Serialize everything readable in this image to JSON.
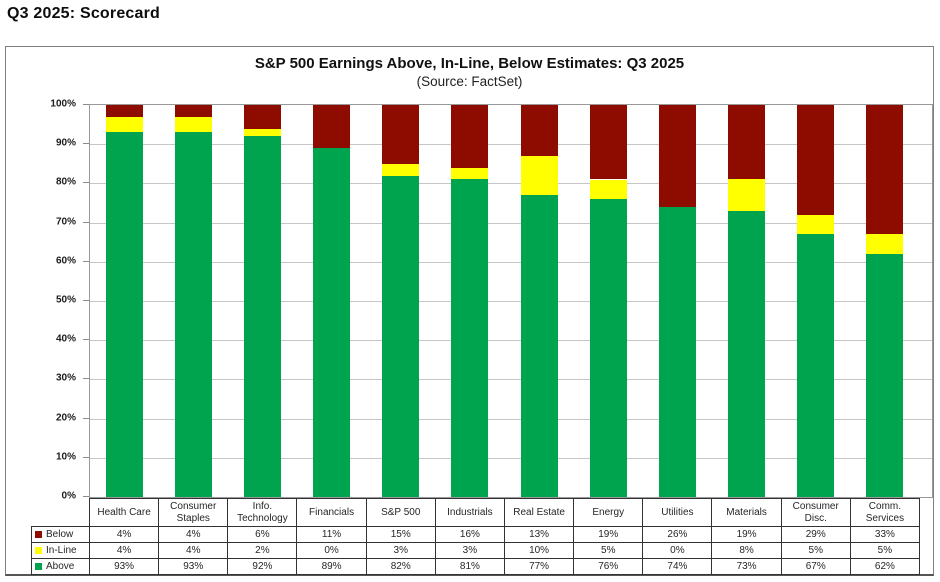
{
  "page": {
    "heading": "Q3 2025: Scorecard"
  },
  "chart": {
    "title": "S&P 500 Earnings Above, In-Line, Below Estimates: Q3 2025",
    "subtitle": "(Source: FactSet)",
    "y_axis_labels": [
      "100%",
      "90%",
      "80%",
      "70%",
      "60%",
      "50%",
      "40%",
      "30%",
      "20%",
      "10%",
      "0%"
    ]
  },
  "chart_data": {
    "type": "bar",
    "stacked": true,
    "title": "S&P 500 Earnings Above, In-Line, Below Estimates: Q3 2025",
    "subtitle": "(Source: FactSet)",
    "categories": [
      "Health Care",
      "Consumer Staples",
      "Info. Technology",
      "Financials",
      "S&P 500",
      "Industrials",
      "Real Estate",
      "Energy",
      "Utilities",
      "Materials",
      "Consumer Disc.",
      "Comm. Services"
    ],
    "series": [
      {
        "name": "Below",
        "color": "#8E0B00",
        "values": [
          4,
          4,
          6,
          11,
          15,
          16,
          13,
          19,
          26,
          19,
          29,
          33
        ]
      },
      {
        "name": "In-Line",
        "color": "#FFFF00",
        "values": [
          4,
          4,
          2,
          0,
          3,
          3,
          10,
          5,
          0,
          8,
          5,
          5
        ]
      },
      {
        "name": "Above",
        "color": "#00A44F",
        "values": [
          93,
          93,
          92,
          89,
          82,
          81,
          77,
          76,
          74,
          73,
          67,
          62
        ]
      }
    ],
    "stack_order_bottom_to_top": [
      "Above",
      "In-Line",
      "Below"
    ],
    "ylim": [
      0,
      100
    ],
    "y_tick_step": 10,
    "grid": true,
    "value_suffix": "%",
    "legend_position": "table-left",
    "accent_colors": {
      "above_green": "#00A44F",
      "inline_yellow": "#FFFF00",
      "below_darkred": "#8E0B00"
    }
  }
}
